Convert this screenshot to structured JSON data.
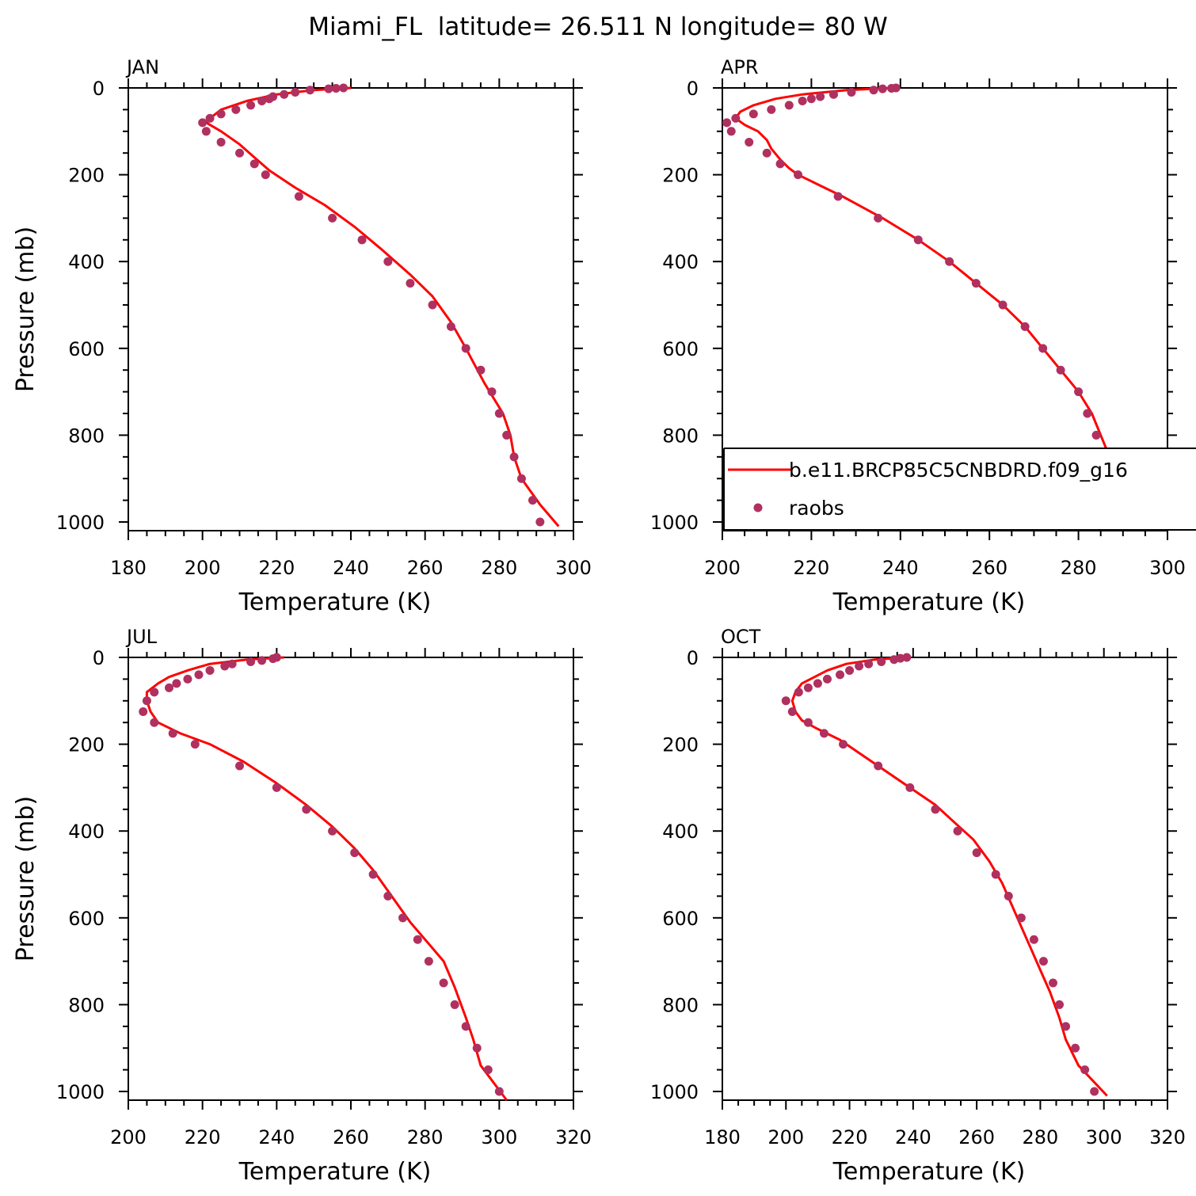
{
  "title": "Miami_FL  latitude= 26.511 N longitude= 80 W",
  "colors": {
    "model": "#ff0000",
    "obs": "#b03060",
    "axis": "#000000"
  },
  "legend": {
    "panel": 1,
    "entries": [
      {
        "label": "b.e11.BRCP85C5CNBDRD.f09_g16",
        "style": "line",
        "color": "#ff0000"
      },
      {
        "label": "raobs",
        "style": "marker",
        "color": "#b03060"
      }
    ]
  },
  "chart_data": [
    {
      "type": "line",
      "panel_title": "JAN",
      "xlabel": "Temperature (K)",
      "ylabel": "Pressure (mb)",
      "xlim": [
        180,
        300
      ],
      "ylim": [
        1020,
        0
      ],
      "xticks": [
        180,
        200,
        220,
        240,
        260,
        280,
        300
      ],
      "yticks": [
        0,
        200,
        400,
        600,
        800,
        1000
      ],
      "grid": false,
      "series": [
        {
          "name": "b.e11.BRCP85C5CNBDRD.f09_g16",
          "style": "line",
          "points": [
            [
              240,
              0
            ],
            [
              230,
              5
            ],
            [
              220,
              15
            ],
            [
              212,
              30
            ],
            [
              205,
              50
            ],
            [
              202,
              70
            ],
            [
              201,
              80
            ],
            [
              205,
              100
            ],
            [
              210,
              130
            ],
            [
              214,
              160
            ],
            [
              218,
              190
            ],
            [
              225,
              230
            ],
            [
              233,
              270
            ],
            [
              241,
              320
            ],
            [
              248,
              370
            ],
            [
              256,
              430
            ],
            [
              262,
              480
            ],
            [
              267,
              540
            ],
            [
              271,
              600
            ],
            [
              276,
              680
            ],
            [
              281,
              750
            ],
            [
              283,
              800
            ],
            [
              284,
              850
            ],
            [
              286,
              900
            ],
            [
              291,
              960
            ],
            [
              296,
              1010
            ]
          ]
        },
        {
          "name": "raobs",
          "style": "marker",
          "points": [
            [
              238,
              0
            ],
            [
              236,
              1
            ],
            [
              234,
              2
            ],
            [
              229,
              5
            ],
            [
              225,
              10
            ],
            [
              222,
              15
            ],
            [
              219,
              20
            ],
            [
              218,
              25
            ],
            [
              216,
              30
            ],
            [
              213,
              40
            ],
            [
              209,
              50
            ],
            [
              205,
              60
            ],
            [
              202,
              70
            ],
            [
              200,
              80
            ],
            [
              201,
              100
            ],
            [
              205,
              125
            ],
            [
              210,
              150
            ],
            [
              214,
              175
            ],
            [
              217,
              200
            ],
            [
              226,
              250
            ],
            [
              235,
              300
            ],
            [
              243,
              350
            ],
            [
              250,
              400
            ],
            [
              256,
              450
            ],
            [
              262,
              500
            ],
            [
              267,
              550
            ],
            [
              271,
              600
            ],
            [
              275,
              650
            ],
            [
              278,
              700
            ],
            [
              280,
              750
            ],
            [
              282,
              800
            ],
            [
              284,
              850
            ],
            [
              286,
              900
            ],
            [
              289,
              950
            ],
            [
              291,
              1000
            ]
          ]
        }
      ]
    },
    {
      "type": "line",
      "panel_title": "APR",
      "xlabel": "Temperature (K)",
      "ylabel": "",
      "xlim": [
        200,
        300
      ],
      "ylim": [
        1020,
        0
      ],
      "xticks": [
        200,
        220,
        240,
        260,
        280,
        300
      ],
      "yticks": [
        0,
        200,
        400,
        600,
        800,
        1000
      ],
      "grid": false,
      "series": [
        {
          "name": "b.e11.BRCP85C5CNBDRD.f09_g16",
          "style": "line",
          "points": [
            [
              238,
              0
            ],
            [
              228,
              5
            ],
            [
              218,
              15
            ],
            [
              212,
              25
            ],
            [
              207,
              40
            ],
            [
              204,
              55
            ],
            [
              203,
              70
            ],
            [
              205,
              85
            ],
            [
              208,
              100
            ],
            [
              210,
              120
            ],
            [
              211,
              140
            ],
            [
              213,
              165
            ],
            [
              215,
              185
            ],
            [
              217,
              200
            ],
            [
              221,
              220
            ],
            [
              227,
              250
            ],
            [
              236,
              300
            ],
            [
              244,
              350
            ],
            [
              251,
              400
            ],
            [
              257,
              450
            ],
            [
              263,
              500
            ],
            [
              268,
              550
            ],
            [
              272,
              600
            ],
            [
              276,
              650
            ],
            [
              280,
              700
            ],
            [
              283,
              750
            ],
            [
              285,
              800
            ],
            [
              287,
              850
            ],
            [
              289,
              900
            ],
            [
              293,
              950
            ],
            [
              298,
              1010
            ]
          ]
        },
        {
          "name": "raobs",
          "style": "marker",
          "points": [
            [
              239,
              0
            ],
            [
              238,
              1
            ],
            [
              236,
              2
            ],
            [
              234,
              5
            ],
            [
              229,
              10
            ],
            [
              225,
              15
            ],
            [
              222,
              20
            ],
            [
              220,
              25
            ],
            [
              218,
              30
            ],
            [
              215,
              40
            ],
            [
              211,
              50
            ],
            [
              207,
              60
            ],
            [
              203,
              70
            ],
            [
              201,
              80
            ],
            [
              202,
              100
            ],
            [
              206,
              125
            ],
            [
              210,
              150
            ],
            [
              213,
              175
            ],
            [
              217,
              200
            ],
            [
              226,
              250
            ],
            [
              235,
              300
            ],
            [
              244,
              350
            ],
            [
              251,
              400
            ],
            [
              257,
              450
            ],
            [
              263,
              500
            ],
            [
              268,
              550
            ],
            [
              272,
              600
            ],
            [
              276,
              650
            ],
            [
              280,
              700
            ],
            [
              282,
              750
            ],
            [
              284,
              800
            ],
            [
              286,
              850
            ],
            [
              289,
              900
            ],
            [
              292,
              950
            ],
            [
              295,
              1000
            ]
          ]
        }
      ]
    },
    {
      "type": "line",
      "panel_title": "JUL",
      "xlabel": "Temperature (K)",
      "ylabel": "Pressure (mb)",
      "xlim": [
        200,
        320
      ],
      "ylim": [
        1020,
        0
      ],
      "xticks": [
        200,
        220,
        240,
        260,
        280,
        300,
        320
      ],
      "yticks": [
        0,
        200,
        400,
        600,
        800,
        1000
      ],
      "grid": false,
      "series": [
        {
          "name": "b.e11.BRCP85C5CNBDRD.f09_g16",
          "style": "line",
          "points": [
            [
              242,
              0
            ],
            [
              232,
              5
            ],
            [
              222,
              15
            ],
            [
              216,
              30
            ],
            [
              211,
              45
            ],
            [
              208,
              60
            ],
            [
              205,
              80
            ],
            [
              205,
              100
            ],
            [
              206,
              125
            ],
            [
              208,
              150
            ],
            [
              214,
              175
            ],
            [
              222,
              200
            ],
            [
              231,
              240
            ],
            [
              240,
              290
            ],
            [
              248,
              340
            ],
            [
              255,
              390
            ],
            [
              261,
              440
            ],
            [
              266,
              490
            ],
            [
              271,
              550
            ],
            [
              276,
              610
            ],
            [
              281,
              660
            ],
            [
              285,
              700
            ],
            [
              288,
              760
            ],
            [
              291,
              830
            ],
            [
              293,
              880
            ],
            [
              295,
              940
            ],
            [
              302,
              1020
            ]
          ]
        },
        {
          "name": "raobs",
          "style": "marker",
          "points": [
            [
              240,
              0
            ],
            [
              239,
              3
            ],
            [
              236,
              7
            ],
            [
              233,
              10
            ],
            [
              228,
              15
            ],
            [
              226,
              20
            ],
            [
              222,
              30
            ],
            [
              219,
              40
            ],
            [
              216,
              50
            ],
            [
              213,
              60
            ],
            [
              211,
              70
            ],
            [
              207,
              80
            ],
            [
              205,
              100
            ],
            [
              204,
              125
            ],
            [
              207,
              150
            ],
            [
              212,
              175
            ],
            [
              218,
              200
            ],
            [
              230,
              250
            ],
            [
              240,
              300
            ],
            [
              248,
              350
            ],
            [
              255,
              400
            ],
            [
              261,
              450
            ],
            [
              266,
              500
            ],
            [
              270,
              550
            ],
            [
              274,
              600
            ],
            [
              278,
              650
            ],
            [
              281,
              700
            ],
            [
              285,
              750
            ],
            [
              288,
              800
            ],
            [
              291,
              850
            ],
            [
              294,
              900
            ],
            [
              297,
              950
            ],
            [
              300,
              1000
            ]
          ]
        }
      ]
    },
    {
      "type": "line",
      "panel_title": "OCT",
      "xlabel": "Temperature (K)",
      "ylabel": "",
      "xlim": [
        180,
        320
      ],
      "ylim": [
        1020,
        0
      ],
      "xticks": [
        180,
        200,
        220,
        240,
        260,
        280,
        300,
        320
      ],
      "yticks": [
        0,
        200,
        400,
        600,
        800,
        1000
      ],
      "grid": false,
      "series": [
        {
          "name": "b.e11.BRCP85C5CNBDRD.f09_g16",
          "style": "line",
          "points": [
            [
              238,
              0
            ],
            [
              228,
              5
            ],
            [
              219,
              15
            ],
            [
              213,
              30
            ],
            [
              209,
              45
            ],
            [
              205,
              60
            ],
            [
              203,
              80
            ],
            [
              202,
              100
            ],
            [
              203,
              125
            ],
            [
              205,
              145
            ],
            [
              210,
              165
            ],
            [
              217,
              190
            ],
            [
              223,
              220
            ],
            [
              231,
              260
            ],
            [
              239,
              300
            ],
            [
              247,
              340
            ],
            [
              253,
              380
            ],
            [
              259,
              420
            ],
            [
              264,
              470
            ],
            [
              268,
              520
            ],
            [
              271,
              570
            ],
            [
              274,
              620
            ],
            [
              277,
              670
            ],
            [
              280,
              720
            ],
            [
              283,
              770
            ],
            [
              286,
              830
            ],
            [
              288,
              880
            ],
            [
              292,
              940
            ],
            [
              301,
              1010
            ]
          ]
        },
        {
          "name": "raobs",
          "style": "marker",
          "points": [
            [
              238,
              0
            ],
            [
              236,
              2
            ],
            [
              234,
              5
            ],
            [
              230,
              10
            ],
            [
              226,
              15
            ],
            [
              223,
              20
            ],
            [
              220,
              30
            ],
            [
              217,
              40
            ],
            [
              213,
              50
            ],
            [
              210,
              60
            ],
            [
              207,
              70
            ],
            [
              204,
              80
            ],
            [
              200,
              100
            ],
            [
              202,
              125
            ],
            [
              207,
              150
            ],
            [
              212,
              175
            ],
            [
              218,
              200
            ],
            [
              229,
              250
            ],
            [
              239,
              300
            ],
            [
              247,
              350
            ],
            [
              254,
              400
            ],
            [
              260,
              450
            ],
            [
              266,
              500
            ],
            [
              270,
              550
            ],
            [
              274,
              600
            ],
            [
              278,
              650
            ],
            [
              281,
              700
            ],
            [
              284,
              750
            ],
            [
              286,
              800
            ],
            [
              288,
              850
            ],
            [
              291,
              900
            ],
            [
              294,
              950
            ],
            [
              297,
              1000
            ]
          ]
        }
      ]
    }
  ]
}
